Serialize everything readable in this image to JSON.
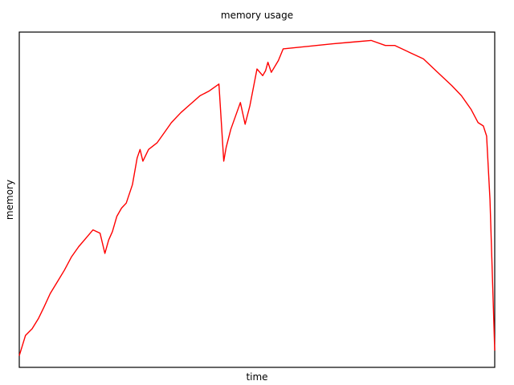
{
  "chart_data": {
    "type": "line",
    "title": "memory usage",
    "xlabel": "time",
    "ylabel": "memory",
    "xlim": [
      0,
      1
    ],
    "ylim": [
      0,
      1
    ],
    "grid": false,
    "xticks": false,
    "yticks": false,
    "series": [
      {
        "color": "#ff0000",
        "x": [
          0.0,
          0.013,
          0.027,
          0.04,
          0.052,
          0.065,
          0.08,
          0.095,
          0.11,
          0.125,
          0.14,
          0.155,
          0.17,
          0.18,
          0.188,
          0.196,
          0.205,
          0.215,
          0.225,
          0.238,
          0.248,
          0.254,
          0.26,
          0.272,
          0.29,
          0.305,
          0.32,
          0.34,
          0.36,
          0.38,
          0.4,
          0.42,
          0.43,
          0.435,
          0.445,
          0.465,
          0.475,
          0.485,
          0.5,
          0.512,
          0.518,
          0.523,
          0.53,
          0.545,
          0.555,
          0.59,
          0.625,
          0.66,
          0.7,
          0.74,
          0.77,
          0.79,
          0.82,
          0.85,
          0.88,
          0.91,
          0.93,
          0.95,
          0.965,
          0.976,
          0.983,
          0.99,
          1.0
        ],
        "y": [
          0.035,
          0.095,
          0.115,
          0.145,
          0.18,
          0.22,
          0.255,
          0.29,
          0.33,
          0.36,
          0.385,
          0.41,
          0.4,
          0.34,
          0.38,
          0.405,
          0.45,
          0.475,
          0.49,
          0.545,
          0.625,
          0.65,
          0.615,
          0.65,
          0.67,
          0.7,
          0.73,
          0.76,
          0.785,
          0.81,
          0.825,
          0.845,
          0.615,
          0.655,
          0.71,
          0.79,
          0.725,
          0.78,
          0.89,
          0.87,
          0.885,
          0.91,
          0.88,
          0.915,
          0.95,
          0.955,
          0.96,
          0.965,
          0.97,
          0.975,
          0.96,
          0.96,
          0.94,
          0.92,
          0.88,
          0.84,
          0.81,
          0.77,
          0.73,
          0.72,
          0.69,
          0.5,
          0.05
        ]
      }
    ]
  }
}
